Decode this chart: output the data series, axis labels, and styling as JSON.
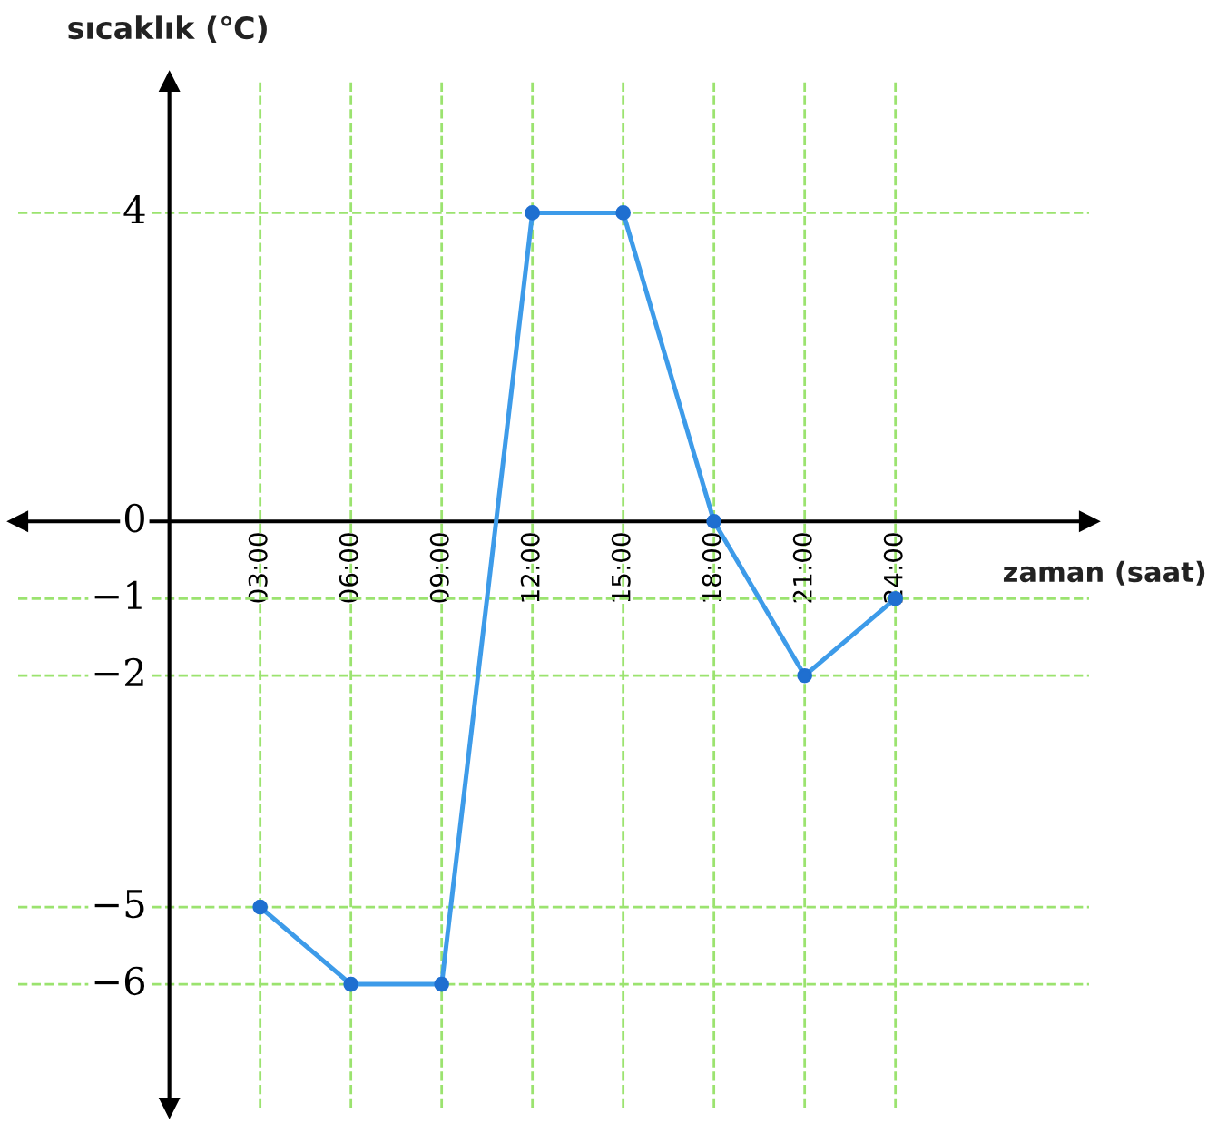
{
  "chart_data": {
    "type": "line",
    "xlabel": "zaman (saat)",
    "ylabel": "sıcaklık (℃)",
    "x": [
      3,
      6,
      9,
      12,
      15,
      18,
      21,
      24
    ],
    "series": [
      {
        "color": "#3d9be9",
        "values": [
          -5,
          -6,
          -6,
          4,
          4,
          0,
          -2,
          -1
        ]
      }
    ],
    "marker": "circle",
    "line_style": "solid",
    "grid": true,
    "xlim": [
      -5,
      30.4
    ],
    "ylim": [
      -7.6,
      5.7
    ],
    "xticks": [
      {
        "value": 3,
        "label": "03:00"
      },
      {
        "value": 6,
        "label": "06:00"
      },
      {
        "value": 9,
        "label": "09:00"
      },
      {
        "value": 12,
        "label": "12:00"
      },
      {
        "value": 15,
        "label": "15:00"
      },
      {
        "value": 18,
        "label": "18:00"
      },
      {
        "value": 21,
        "label": "21:00"
      },
      {
        "value": 24,
        "label": "24:00"
      }
    ],
    "yticks": [
      4,
      0,
      {
        "value": -1,
        "label": "−1"
      },
      {
        "value": -2,
        "label": "−2"
      },
      {
        "value": -5,
        "label": "−5"
      },
      {
        "value": -6,
        "label": "−6"
      }
    ]
  }
}
